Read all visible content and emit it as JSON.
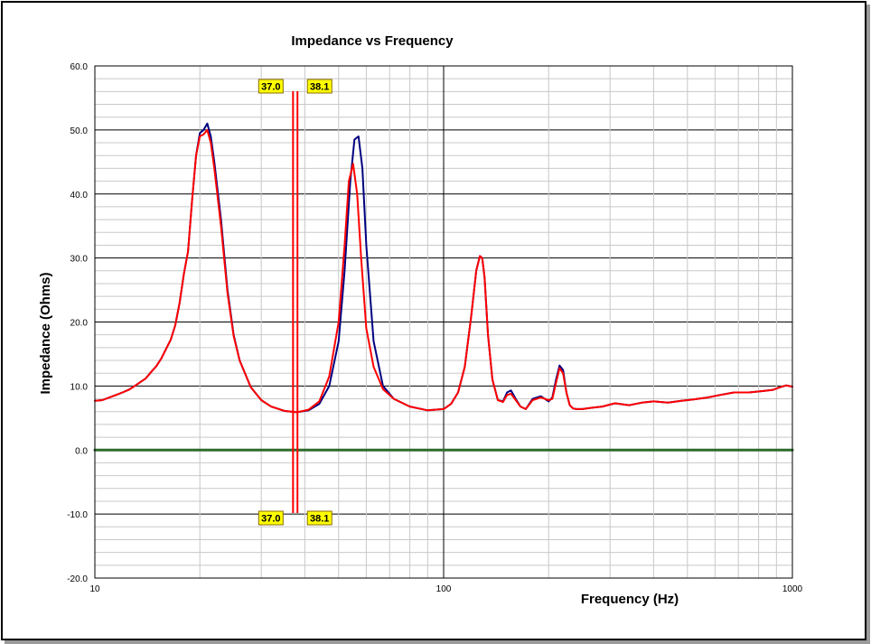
{
  "chart_data": {
    "type": "line",
    "title": "Impedance vs Frequency",
    "xlabel": "Frequency (Hz)",
    "ylabel": "Impedance (Ohms)",
    "xscale": "log",
    "xlim": [
      10,
      1000
    ],
    "ylim": [
      -20,
      60
    ],
    "y_ticks": [
      "-20.0",
      "-10.0",
      "0.0",
      "10.0",
      "20.0",
      "30.0",
      "40.0",
      "50.0",
      "60.0"
    ],
    "x_ticks": [
      "10",
      "100",
      "1000"
    ],
    "grid": true,
    "cursors": [
      {
        "label": "37.0",
        "x": 37.0,
        "color": "#ff0000"
      },
      {
        "label": "38.1",
        "x": 38.1,
        "color": "#ff0000"
      }
    ],
    "series": [
      {
        "color": "#000080",
        "x": [
          10,
          10.5,
          11,
          11.5,
          12,
          12.5,
          13,
          13.5,
          14,
          14.5,
          15,
          15.5,
          16,
          16.5,
          17,
          17.5,
          18,
          18.5,
          19,
          19.5,
          20,
          20.5,
          21,
          21.5,
          22,
          23,
          24,
          25,
          26,
          28,
          30,
          32,
          35,
          38,
          41,
          44,
          47,
          50,
          52,
          54,
          55.5,
          57,
          58.5,
          60,
          63,
          67,
          72,
          80,
          90,
          100,
          105,
          110,
          115,
          120,
          124,
          127,
          129,
          131,
          134,
          138,
          143,
          148,
          152,
          156,
          161,
          166,
          172,
          180,
          190,
          200,
          205,
          210,
          215,
          220,
          225,
          230,
          235,
          240,
          250,
          265,
          285,
          310,
          340,
          370,
          400,
          440,
          480,
          520,
          570,
          620,
          680,
          750,
          820,
          880,
          920,
          960,
          1000
        ],
        "y": [
          7.7,
          7.8,
          8.2,
          8.6,
          9.0,
          9.4,
          10.0,
          10.6,
          11.2,
          12.2,
          13.1,
          14.3,
          15.8,
          17.2,
          19.5,
          23.0,
          27.5,
          31.0,
          39.0,
          46.0,
          49.5,
          50.0,
          51.0,
          49.0,
          45.0,
          36.0,
          25.0,
          18.0,
          14.0,
          9.8,
          7.8,
          6.8,
          6.1,
          5.9,
          6.2,
          7.2,
          10.0,
          17.0,
          28.0,
          42.0,
          48.5,
          49.0,
          44.0,
          32.0,
          17.0,
          10.0,
          8.0,
          6.8,
          6.2,
          6.4,
          7.2,
          9.0,
          13.0,
          21.0,
          28.0,
          30.3,
          30.0,
          27.0,
          18.0,
          11.0,
          7.8,
          7.6,
          9.0,
          9.3,
          8.0,
          6.8,
          6.4,
          8.0,
          8.4,
          7.6,
          8.2,
          11.0,
          13.2,
          12.5,
          9.0,
          7.0,
          6.5,
          6.4,
          6.4,
          6.6,
          6.8,
          7.3,
          7.0,
          7.4,
          7.6,
          7.4,
          7.7,
          7.9,
          8.2,
          8.6,
          9.0,
          9.0,
          9.2,
          9.4,
          9.8,
          10.1,
          9.9
        ]
      },
      {
        "color": "#ff0000",
        "x": [
          10,
          10.5,
          11,
          11.5,
          12,
          12.5,
          13,
          13.5,
          14,
          14.5,
          15,
          15.5,
          16,
          16.5,
          17,
          17.5,
          18,
          18.5,
          19,
          19.5,
          20,
          20.5,
          21,
          21.5,
          22,
          23,
          24,
          25,
          26,
          28,
          30,
          32,
          35,
          38,
          41,
          44,
          47,
          50,
          52,
          53.5,
          55,
          56.5,
          58,
          60,
          63,
          67,
          72,
          80,
          90,
          100,
          105,
          110,
          115,
          120,
          124,
          127,
          129,
          131,
          134,
          138,
          143,
          148,
          152,
          156,
          161,
          166,
          172,
          180,
          190,
          200,
          205,
          210,
          215,
          220,
          225,
          230,
          235,
          240,
          250,
          265,
          285,
          310,
          340,
          370,
          400,
          440,
          480,
          520,
          570,
          620,
          680,
          750,
          820,
          880,
          920,
          960,
          1000
        ],
        "y": [
          7.7,
          7.8,
          8.2,
          8.6,
          9.0,
          9.4,
          10.0,
          10.6,
          11.2,
          12.2,
          13.1,
          14.3,
          15.8,
          17.2,
          19.5,
          23.0,
          27.5,
          31.0,
          39.0,
          46.0,
          49.0,
          49.3,
          50.0,
          48.0,
          44.0,
          35.0,
          24.5,
          17.8,
          14.0,
          9.8,
          7.8,
          6.8,
          6.1,
          5.9,
          6.3,
          7.6,
          11.5,
          20.0,
          32.0,
          42.0,
          44.7,
          40.0,
          30.0,
          19.0,
          13.0,
          9.5,
          8.0,
          6.8,
          6.2,
          6.4,
          7.2,
          9.0,
          13.0,
          21.0,
          28.0,
          30.3,
          30.0,
          27.0,
          18.0,
          11.0,
          7.8,
          7.5,
          8.6,
          8.8,
          7.8,
          6.8,
          6.4,
          7.8,
          8.2,
          7.8,
          8.0,
          10.5,
          12.8,
          12.0,
          9.0,
          7.0,
          6.5,
          6.4,
          6.4,
          6.6,
          6.8,
          7.3,
          7.0,
          7.4,
          7.6,
          7.4,
          7.7,
          7.9,
          8.2,
          8.6,
          9.0,
          9.0,
          9.2,
          9.4,
          9.8,
          10.1,
          9.9
        ]
      },
      {
        "color": "#2e6b2e",
        "x": [
          10,
          1000
        ],
        "y": [
          0,
          0
        ]
      }
    ]
  }
}
